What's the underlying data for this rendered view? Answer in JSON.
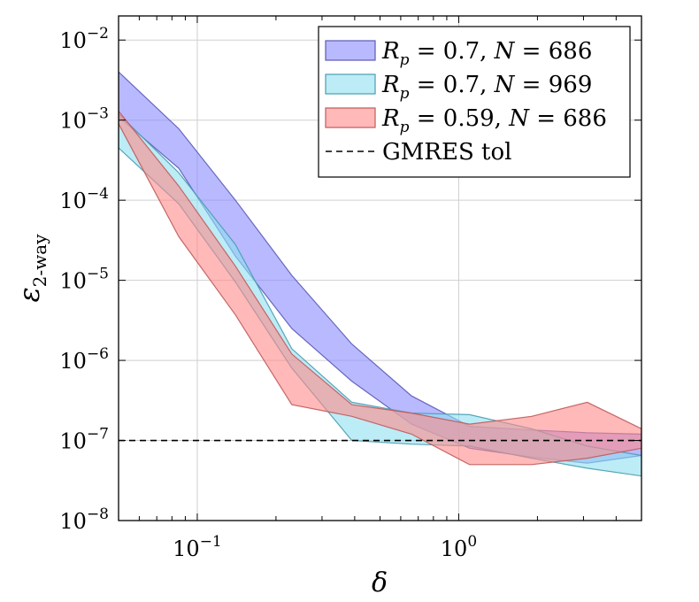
{
  "chart_data": {
    "type": "area",
    "title": "",
    "xlabel": "δ",
    "ylabel_base": "ε",
    "ylabel_sub": "2-way",
    "x_scale": "log",
    "y_scale": "log",
    "xlim": [
      0.05,
      5
    ],
    "ylim": [
      1e-08,
      0.02
    ],
    "grid": true,
    "legend_position": "top-right",
    "x_ticks": [
      {
        "value": 0.1,
        "base": "10",
        "exp": "−1"
      },
      {
        "value": 1,
        "base": "10",
        "exp": "0"
      }
    ],
    "y_ticks": [
      {
        "value": 1e-08,
        "base": "10",
        "exp": "−8"
      },
      {
        "value": 1e-07,
        "base": "10",
        "exp": "−7"
      },
      {
        "value": 1e-06,
        "base": "10",
        "exp": "−6"
      },
      {
        "value": 1e-05,
        "base": "10",
        "exp": "−5"
      },
      {
        "value": 0.0001,
        "base": "10",
        "exp": "−4"
      },
      {
        "value": 0.001,
        "base": "10",
        "exp": "−3"
      },
      {
        "value": 0.01,
        "base": "10",
        "exp": "−2"
      }
    ],
    "series": [
      {
        "name_parts": [
          {
            "t": "R",
            "style": "italic"
          },
          {
            "t": "p",
            "style": "sub"
          },
          {
            "t": " = 0.7, ",
            "style": "normal"
          },
          {
            "t": "N",
            "style": "italic"
          },
          {
            "t": " = 686",
            "style": "normal"
          }
        ],
        "fill": "#8b8bff",
        "stroke": "#5a5ab8",
        "x": [
          0.05,
          0.085,
          0.14,
          0.23,
          0.39,
          0.66,
          1.1,
          1.9,
          3.1,
          5.0
        ],
        "upper": [
          0.004,
          0.00078,
          0.0001,
          1.15e-05,
          1.6e-06,
          3.6e-07,
          1.5e-07,
          1.35e-07,
          1.25e-07,
          1.2e-07
        ],
        "lower": [
          0.0011,
          0.00025,
          2e-05,
          2.5e-06,
          5.5e-07,
          1.6e-07,
          8e-08,
          6.2e-08,
          5.2e-08,
          6.5e-08
        ]
      },
      {
        "name_parts": [
          {
            "t": "R",
            "style": "italic"
          },
          {
            "t": "p",
            "style": "sub"
          },
          {
            "t": " = 0.7, ",
            "style": "normal"
          },
          {
            "t": "N",
            "style": "italic"
          },
          {
            "t": " = 969",
            "style": "normal"
          }
        ],
        "fill": "#8fe0f0",
        "stroke": "#4a9cb0",
        "x": [
          0.05,
          0.085,
          0.14,
          0.23,
          0.39,
          0.66,
          1.1,
          1.9,
          3.1,
          5.0
        ],
        "upper": [
          0.0012,
          0.00022,
          2.8e-05,
          1.4e-06,
          3e-07,
          2.2e-07,
          2.1e-07,
          1.4e-07,
          8.5e-08,
          6.5e-08
        ],
        "lower": [
          0.00045,
          9e-05,
          9.5e-06,
          8e-07,
          1e-07,
          9e-08,
          8.5e-08,
          6e-08,
          4.5e-08,
          3.6e-08
        ]
      },
      {
        "name_parts": [
          {
            "t": "R",
            "style": "italic"
          },
          {
            "t": "p",
            "style": "sub"
          },
          {
            "t": " = 0.59, ",
            "style": "normal"
          },
          {
            "t": "N",
            "style": "italic"
          },
          {
            "t": " = 686",
            "style": "normal"
          }
        ],
        "fill": "#ff8a8a",
        "stroke": "#c05a5a",
        "x": [
          0.05,
          0.085,
          0.14,
          0.23,
          0.39,
          0.66,
          1.1,
          1.9,
          3.1,
          5.0
        ],
        "upper": [
          0.0013,
          0.00015,
          1.5e-05,
          1.2e-06,
          2.8e-07,
          2.2e-07,
          1.6e-07,
          2e-07,
          3e-07,
          1.4e-07
        ],
        "lower": [
          0.0009,
          3.5e-05,
          3.7e-06,
          2.8e-07,
          2e-07,
          1.2e-07,
          5e-08,
          5e-08,
          6e-08,
          8e-08
        ]
      }
    ],
    "reference_line": {
      "name": "GMRES tol",
      "y": 1e-07,
      "color": "#000000"
    }
  }
}
